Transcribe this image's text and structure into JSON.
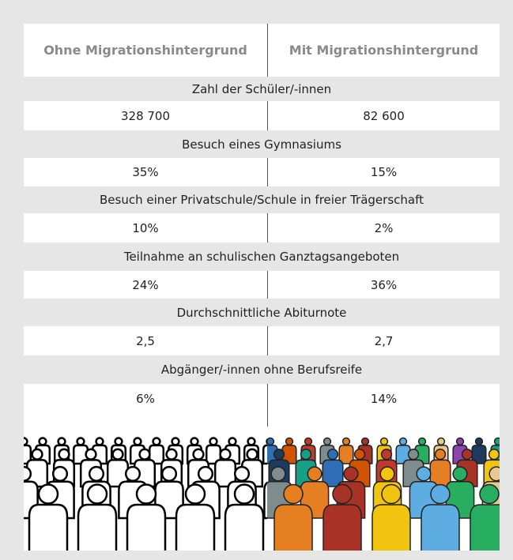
{
  "header": {
    "columns": [
      "Ohne Migrationshintergrund",
      "Mit Migrationshintergrund"
    ]
  },
  "rows": [
    {
      "label": "Zahl der Schüler/-innen",
      "values": [
        "328 700",
        "82 600"
      ]
    },
    {
      "label": "Besuch eines Gymnasiums",
      "values": [
        "35%",
        "15%"
      ]
    },
    {
      "label": "Besuch einer Privatschule/Schule in freier Trägerschaft",
      "values": [
        "10%",
        "2%"
      ]
    },
    {
      "label": "Teilnahme an schulischen Ganztagsangeboten",
      "values": [
        "24%",
        "36%"
      ]
    },
    {
      "label": "Durchschnittliche Abiturnote",
      "values": [
        "2,5",
        "2,7"
      ]
    },
    {
      "label": "Abgänger/-innen ohne Berufsreife",
      "values": [
        "6%",
        "14%"
      ]
    }
  ]
}
